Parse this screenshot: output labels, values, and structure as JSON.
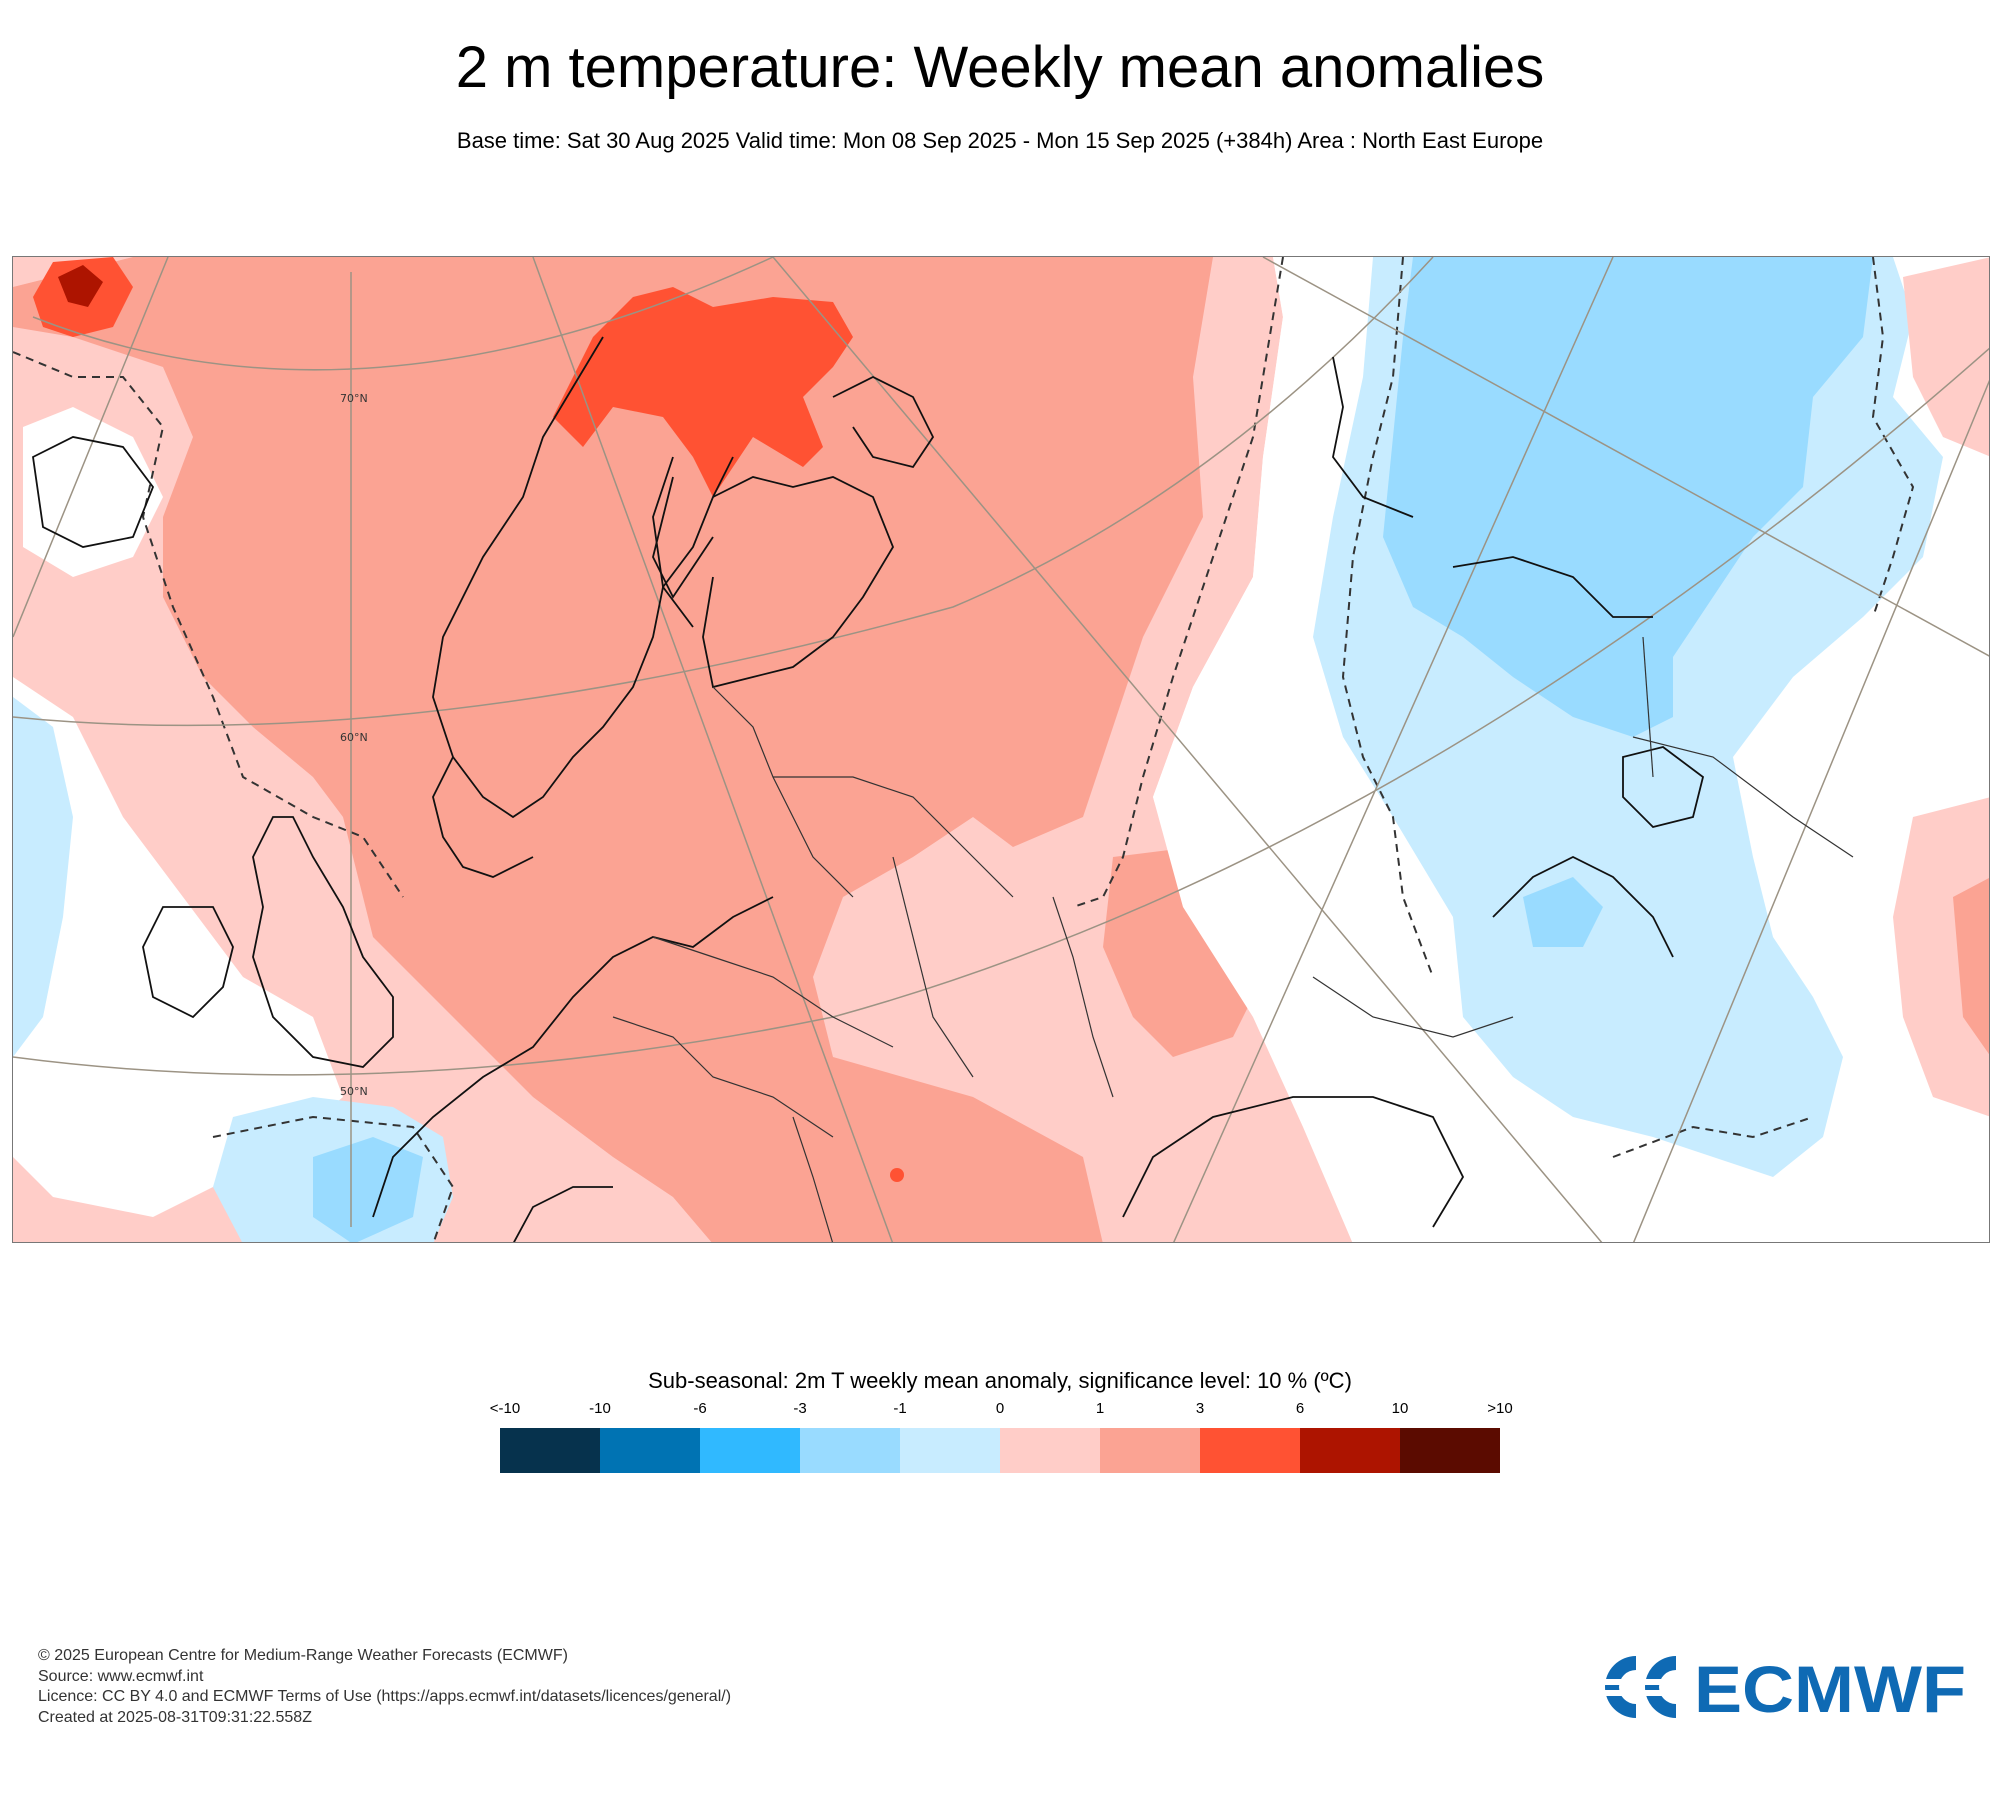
{
  "title": "2 m temperature: Weekly mean anomalies",
  "subtitle": "Base time: Sat 30 Aug 2025 Valid time: Mon 08 Sep 2025 - Mon 15 Sep 2025 (+384h) Area : North East Europe",
  "map": {
    "lat_labels": [
      "70°N",
      "60°N",
      "50°N"
    ]
  },
  "legend": {
    "title": "Sub-seasonal: 2m T weekly mean anomaly, significance level: 10 % (ºC)",
    "ticks": [
      "<-10",
      "-10",
      "-6",
      "-3",
      "-1",
      "0",
      "1",
      "3",
      "6",
      "10",
      ">10"
    ],
    "colors": [
      "#06324d",
      "#0073b3",
      "#30b9ff",
      "#99dbff",
      "#c8ecff",
      "#ffcdc8",
      "#fba393",
      "#ff5233",
      "#ad1400",
      "#5b0b00"
    ]
  },
  "footer": {
    "lines": [
      "© 2025 European Centre for Medium-Range Weather Forecasts (ECMWF)",
      "Source: www.ecmwf.int",
      "Licence: CC BY 4.0 and ECMWF Terms of Use (https://apps.ecmwf.int/datasets/licences/general/)",
      "Created at 2025-08-31T09:31:22.558Z"
    ]
  },
  "logo": {
    "text": "ECMWF",
    "color": "#0f6ab4"
  }
}
